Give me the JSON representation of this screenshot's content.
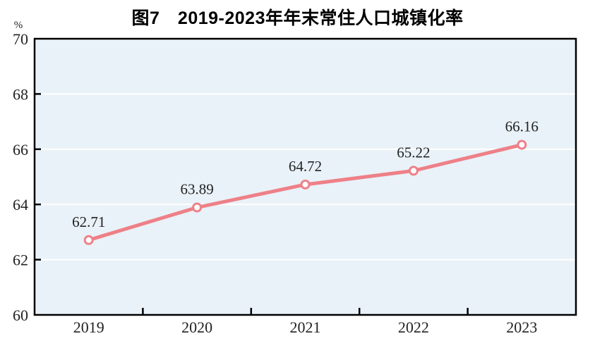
{
  "chart_data": {
    "type": "line",
    "title": "图7　2019-2023年年末常住人口城镇化率",
    "unit_label": "%",
    "categories": [
      "2019",
      "2020",
      "2021",
      "2022",
      "2023"
    ],
    "values": [
      62.71,
      63.89,
      64.72,
      65.22,
      66.16
    ],
    "data_labels": [
      "62.71",
      "63.89",
      "64.72",
      "65.22",
      "66.16"
    ],
    "ylim": [
      60,
      70
    ],
    "yticks": [
      60,
      62,
      64,
      66,
      68,
      70
    ],
    "grid": true,
    "legend": "none",
    "colors": {
      "line": "#ee8088",
      "marker_fill": "#ffffff",
      "plot_bg": "#e9f2f8",
      "grid": "#ffffff",
      "axis": "#000000",
      "text": "#222222"
    }
  }
}
